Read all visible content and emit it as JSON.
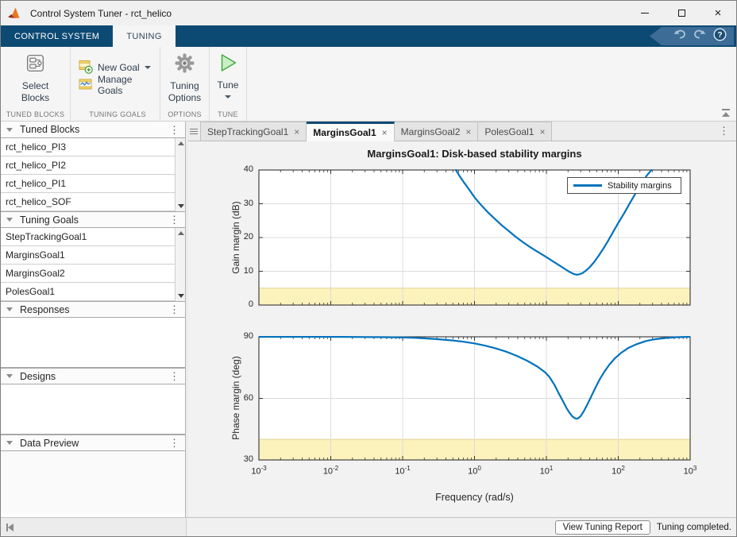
{
  "window": {
    "title": "Control System Tuner - rct_helico"
  },
  "glyphs": {
    "close": "×",
    "menu_dots": "⋮"
  },
  "ribbon": {
    "tabs": [
      {
        "label": "CONTROL SYSTEM"
      },
      {
        "label": "TUNING"
      }
    ],
    "groups": [
      {
        "caption": "TUNED BLOCKS",
        "items": [
          {
            "label": "Select Blocks"
          }
        ]
      },
      {
        "caption": "TUNING GOALS",
        "items": [
          {
            "label": "New Goal"
          },
          {
            "label": "Manage Goals"
          }
        ]
      },
      {
        "caption": "OPTIONS",
        "items": [
          {
            "label": "Tuning Options"
          }
        ]
      },
      {
        "caption": "TUNE",
        "items": [
          {
            "label": "Tune"
          }
        ]
      }
    ]
  },
  "sidebar": {
    "panels": [
      {
        "title": "Tuned Blocks",
        "items": [
          "rct_helico_PI3",
          "rct_helico_PI2",
          "rct_helico_PI1",
          "rct_helico_SOF"
        ]
      },
      {
        "title": "Tuning Goals",
        "items": [
          "StepTrackingGoal1",
          "MarginsGoal1",
          "MarginsGoal2",
          "PolesGoal1"
        ]
      },
      {
        "title": "Responses",
        "items": []
      },
      {
        "title": "Designs",
        "items": []
      },
      {
        "title": "Data Preview",
        "items": []
      }
    ]
  },
  "tabs": [
    {
      "label": "StepTrackingGoal1",
      "active": false
    },
    {
      "label": "MarginsGoal1",
      "active": true
    },
    {
      "label": "MarginsGoal2",
      "active": false
    },
    {
      "label": "PolesGoal1",
      "active": false
    }
  ],
  "statusbar": {
    "report_button": "View Tuning Report",
    "status": "Tuning completed."
  },
  "chart_data": {
    "type": "line",
    "title": "MarginsGoal1: Disk-based stability margins",
    "xlabel": "Frequency (rad/s)",
    "xscale": "log",
    "xlim": [
      0.001,
      1000
    ],
    "xtick_exponents": [
      -3,
      -2,
      -1,
      0,
      1,
      2,
      3
    ],
    "line_color": "#0072BD",
    "shade_color": "#FBF2BC",
    "shade_edge_color": "#E2D492",
    "grid": true,
    "legend": {
      "label": "Stability margins",
      "position": "northeast"
    },
    "subplots": [
      {
        "ylabel": "Gain margin (dB)",
        "ylim": [
          0,
          40
        ],
        "yticks": [
          0,
          10,
          20,
          30,
          40
        ],
        "shaded_region": [
          0,
          5
        ],
        "series": [
          {
            "name": "Stability margins",
            "points": [
              [
                0.55,
                40
              ],
              [
                0.62,
                38.2
              ],
              [
                0.72,
                36.2
              ],
              [
                0.85,
                34.1
              ],
              [
                1.0,
                31.9
              ],
              [
                1.2,
                29.9
              ],
              [
                1.5,
                27.7
              ],
              [
                1.9,
                25.6
              ],
              [
                2.4,
                23.6
              ],
              [
                3.0,
                21.9
              ],
              [
                3.8,
                20.1
              ],
              [
                4.8,
                18.5
              ],
              [
                6.0,
                17.1
              ],
              [
                7.5,
                15.8
              ],
              [
                9.5,
                14.5
              ],
              [
                12,
                13.1
              ],
              [
                15,
                11.8
              ],
              [
                18,
                10.7
              ],
              [
                21,
                9.8
              ],
              [
                24,
                9.2
              ],
              [
                26.5,
                9.0
              ],
              [
                29,
                9.1
              ],
              [
                32,
                9.5
              ],
              [
                36,
                10.3
              ],
              [
                40,
                11.2
              ],
              [
                46,
                12.7
              ],
              [
                53,
                14.5
              ],
              [
                62,
                16.7
              ],
              [
                72,
                19.0
              ],
              [
                85,
                21.7
              ],
              [
                100,
                24.3
              ],
              [
                120,
                27.1
              ],
              [
                145,
                30.2
              ],
              [
                175,
                33.2
              ],
              [
                210,
                35.9
              ],
              [
                250,
                38.4
              ],
              [
                290,
                40
              ]
            ]
          }
        ]
      },
      {
        "ylabel": "Phase margin (deg)",
        "ylim": [
          30,
          90
        ],
        "yticks": [
          30,
          60,
          90
        ],
        "shaded_region": [
          30,
          40
        ],
        "series": [
          {
            "name": "Stability margins",
            "points": [
              [
                0.001,
                90
              ],
              [
                0.01,
                90
              ],
              [
                0.03,
                89.9
              ],
              [
                0.06,
                89.8
              ],
              [
                0.1,
                89.7
              ],
              [
                0.15,
                89.5
              ],
              [
                0.22,
                89.2
              ],
              [
                0.32,
                88.8
              ],
              [
                0.5,
                88.2
              ],
              [
                0.7,
                87.6
              ],
              [
                1.0,
                86.8
              ],
              [
                1.4,
                85.7
              ],
              [
                2.0,
                84.3
              ],
              [
                2.8,
                82.7
              ],
              [
                4.0,
                80.5
              ],
              [
                5.5,
                78.2
              ],
              [
                7.5,
                75.5
              ],
              [
                9.5,
                72.8
              ],
              [
                11,
                70.5
              ],
              [
                13,
                66.5
              ],
              [
                15,
                62.2
              ],
              [
                17,
                58.6
              ],
              [
                19,
                55.4
              ],
              [
                21,
                52.9
              ],
              [
                23,
                51.2
              ],
              [
                25,
                50.3
              ],
              [
                26.5,
                50.1
              ],
              [
                28,
                50.4
              ],
              [
                30,
                51.4
              ],
              [
                33,
                53.6
              ],
              [
                37,
                56.9
              ],
              [
                42,
                60.9
              ],
              [
                48,
                65.2
              ],
              [
                55,
                69.2
              ],
              [
                64,
                73.0
              ],
              [
                75,
                76.4
              ],
              [
                90,
                79.6
              ],
              [
                110,
                82.2
              ],
              [
                140,
                84.7
              ],
              [
                180,
                86.4
              ],
              [
                240,
                87.9
              ],
              [
                320,
                88.8
              ],
              [
                450,
                89.4
              ],
              [
                650,
                89.8
              ],
              [
                1000,
                90
              ]
            ]
          }
        ]
      }
    ]
  }
}
